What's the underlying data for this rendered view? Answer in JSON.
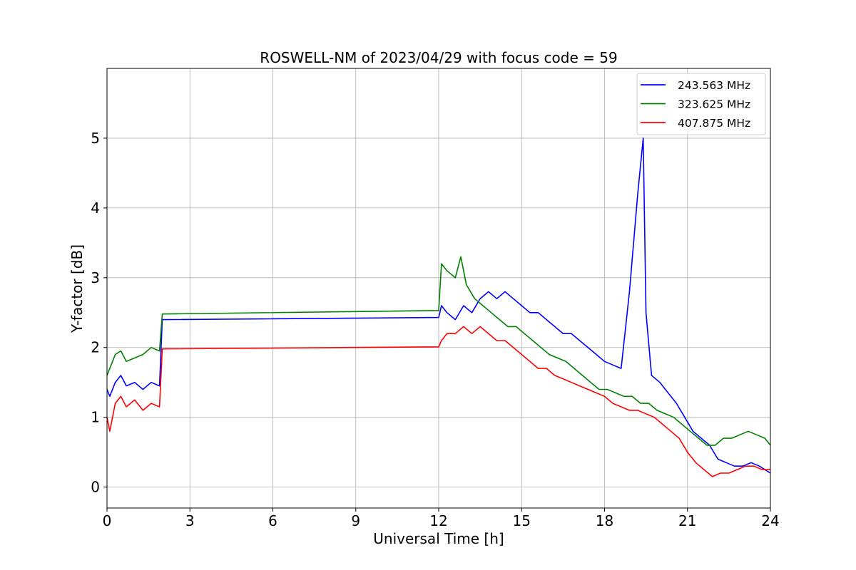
{
  "chart_data": {
    "type": "line",
    "title": "ROSWELL-NM of 2023/04/29 with focus code = 59",
    "xlabel": "Universal Time [h]",
    "ylabel": "Y-factor [dB]",
    "xlim": [
      0,
      24
    ],
    "ylim": [
      -0.3,
      6.0
    ],
    "xticks": [
      0,
      3,
      6,
      9,
      12,
      15,
      18,
      21,
      24
    ],
    "yticks": [
      0,
      1,
      2,
      3,
      4,
      5
    ],
    "grid": true,
    "legend_position": "top-right",
    "series": [
      {
        "name": "243.563 MHz",
        "color": "#0000ff",
        "x": [
          0,
          0.1,
          0.3,
          0.5,
          0.7,
          1.0,
          1.3,
          1.6,
          1.9,
          2.0,
          12.0,
          12.1,
          12.3,
          12.6,
          12.9,
          13.2,
          13.5,
          13.8,
          14.1,
          14.4,
          14.7,
          15.0,
          15.3,
          15.6,
          15.9,
          16.2,
          16.5,
          16.8,
          17.1,
          17.4,
          17.7,
          18.0,
          18.3,
          18.6,
          18.9,
          19.2,
          19.4,
          19.5,
          19.7,
          20.0,
          20.3,
          20.6,
          20.9,
          21.2,
          21.5,
          21.8,
          22.1,
          22.4,
          22.7,
          23.0,
          23.3,
          23.6,
          24.0
        ],
        "y": [
          1.4,
          1.3,
          1.5,
          1.6,
          1.45,
          1.5,
          1.4,
          1.5,
          1.45,
          2.4,
          2.43,
          2.6,
          2.5,
          2.4,
          2.6,
          2.5,
          2.7,
          2.8,
          2.7,
          2.8,
          2.7,
          2.6,
          2.5,
          2.5,
          2.4,
          2.3,
          2.2,
          2.2,
          2.1,
          2.0,
          1.9,
          1.8,
          1.75,
          1.7,
          2.8,
          4.2,
          5.0,
          2.5,
          1.6,
          1.5,
          1.35,
          1.2,
          1.0,
          0.8,
          0.7,
          0.6,
          0.4,
          0.35,
          0.3,
          0.3,
          0.35,
          0.3,
          0.2
        ]
      },
      {
        "name": "323.625 MHz",
        "color": "#008000",
        "x": [
          0,
          0.1,
          0.3,
          0.5,
          0.7,
          1.0,
          1.3,
          1.6,
          1.9,
          2.0,
          12.0,
          12.1,
          12.3,
          12.6,
          12.8,
          13.0,
          13.3,
          13.6,
          13.9,
          14.2,
          14.5,
          14.8,
          15.1,
          15.4,
          15.7,
          16.0,
          16.3,
          16.6,
          16.9,
          17.2,
          17.5,
          17.8,
          18.1,
          18.4,
          18.7,
          19.0,
          19.3,
          19.6,
          19.9,
          20.2,
          20.5,
          20.8,
          21.1,
          21.4,
          21.7,
          22.0,
          22.3,
          22.6,
          22.9,
          23.2,
          23.5,
          23.8,
          24.0
        ],
        "y": [
          1.6,
          1.7,
          1.9,
          1.95,
          1.8,
          1.85,
          1.9,
          2.0,
          1.95,
          2.48,
          2.53,
          3.2,
          3.1,
          3.0,
          3.3,
          2.9,
          2.7,
          2.6,
          2.5,
          2.4,
          2.3,
          2.3,
          2.2,
          2.1,
          2.0,
          1.9,
          1.85,
          1.8,
          1.7,
          1.6,
          1.5,
          1.4,
          1.4,
          1.35,
          1.3,
          1.3,
          1.2,
          1.2,
          1.1,
          1.05,
          1.0,
          0.9,
          0.8,
          0.7,
          0.6,
          0.6,
          0.7,
          0.7,
          0.75,
          0.8,
          0.75,
          0.7,
          0.6
        ]
      },
      {
        "name": "407.875 MHz",
        "color": "#ff0000",
        "x": [
          0,
          0.1,
          0.3,
          0.5,
          0.7,
          1.0,
          1.3,
          1.6,
          1.9,
          2.0,
          12.0,
          12.1,
          12.3,
          12.6,
          12.9,
          13.2,
          13.5,
          13.8,
          14.1,
          14.4,
          14.7,
          15.0,
          15.3,
          15.6,
          15.9,
          16.2,
          16.5,
          16.8,
          17.1,
          17.4,
          17.7,
          18.0,
          18.3,
          18.6,
          18.9,
          19.2,
          19.5,
          19.8,
          20.1,
          20.4,
          20.7,
          21.0,
          21.3,
          21.6,
          21.9,
          22.2,
          22.5,
          22.8,
          23.1,
          23.4,
          23.7,
          24.0
        ],
        "y": [
          1.0,
          0.8,
          1.2,
          1.3,
          1.15,
          1.25,
          1.1,
          1.2,
          1.15,
          1.98,
          2.01,
          2.1,
          2.2,
          2.2,
          2.3,
          2.2,
          2.3,
          2.2,
          2.1,
          2.1,
          2.0,
          1.9,
          1.8,
          1.7,
          1.7,
          1.6,
          1.55,
          1.5,
          1.45,
          1.4,
          1.35,
          1.3,
          1.2,
          1.15,
          1.1,
          1.1,
          1.05,
          1.0,
          0.9,
          0.8,
          0.7,
          0.5,
          0.35,
          0.25,
          0.15,
          0.2,
          0.2,
          0.25,
          0.3,
          0.3,
          0.25,
          0.25
        ]
      }
    ]
  }
}
